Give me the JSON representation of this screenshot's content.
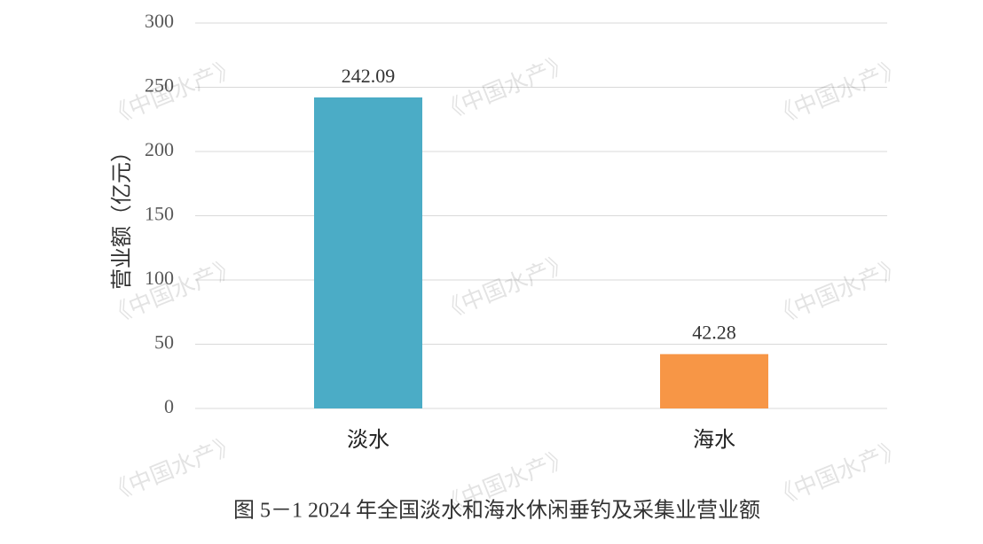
{
  "chart_data": {
    "type": "bar",
    "caption": "图 5－1 2024 年全国淡水和海水休闲垂钓及采集业营业额",
    "y_label": "营业额（亿元）",
    "watermark": "《中国水产》",
    "categories": [
      "淡水",
      "海水"
    ],
    "values": [
      242.09,
      42.28
    ],
    "colors": [
      "#4BACC6",
      "#F79646"
    ],
    "ylim": [
      0,
      300
    ],
    "yticks": [
      0,
      50,
      100,
      150,
      200,
      250,
      300
    ],
    "grid": true
  }
}
